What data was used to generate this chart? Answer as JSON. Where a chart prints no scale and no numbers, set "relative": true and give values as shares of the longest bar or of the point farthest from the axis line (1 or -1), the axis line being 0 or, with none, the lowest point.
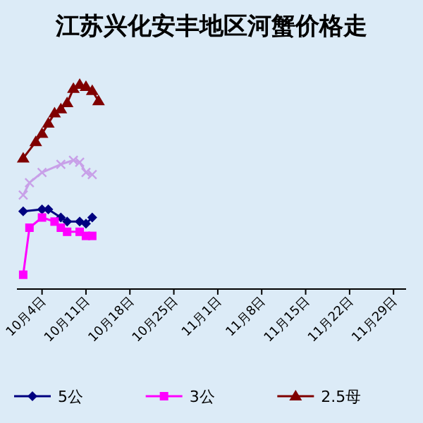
{
  "chart_data": {
    "type": "line",
    "title": "江苏兴化安丰地区河蟹价格走",
    "relative": true,
    "legend": "bottom",
    "xlim": [
      "--09-30",
      "--12-01"
    ],
    "xticks": [
      {
        "value": "--10-04",
        "label": "10月4日"
      },
      {
        "value": "--10-11",
        "label": "10月11日"
      },
      {
        "value": "--10-18",
        "label": "10月18日"
      },
      {
        "value": "--10-25",
        "label": "10月25日"
      },
      {
        "value": "--11-01",
        "label": "11月1日"
      },
      {
        "value": "--11-08",
        "label": "11月8日"
      },
      {
        "value": "--11-15",
        "label": "11月15日"
      },
      {
        "value": "--11-22",
        "label": "11月22日"
      },
      {
        "value": "--11-29",
        "label": "11月29日"
      }
    ],
    "series": [
      {
        "name": "5公",
        "color": "#000080",
        "marker": "diamond",
        "x": [
          "--10-01",
          "--10-04",
          "--10-05",
          "--10-07",
          "--10-08",
          "--10-10",
          "--10-11",
          "--10-12"
        ],
        "values": [
          0.38,
          0.39,
          0.39,
          0.35,
          0.33,
          0.33,
          0.32,
          0.35
        ]
      },
      {
        "name": "3公",
        "color": "#ff00ff",
        "marker": "square",
        "x": [
          "--10-01",
          "--10-02",
          "--10-04",
          "--10-06",
          "--10-07",
          "--10-08",
          "--10-10",
          "--10-11",
          "--10-12"
        ],
        "values": [
          0.07,
          0.3,
          0.35,
          0.33,
          0.3,
          0.28,
          0.28,
          0.26,
          0.26
        ]
      },
      {
        "name": "2.5母",
        "color": "#800000",
        "marker": "triangle",
        "x": [
          "--10-01",
          "--10-03",
          "--10-04",
          "--10-05",
          "--10-06",
          "--10-07",
          "--10-08",
          "--10-09",
          "--10-10",
          "--10-11",
          "--10-12",
          "--10-13"
        ],
        "values": [
          0.64,
          0.72,
          0.76,
          0.81,
          0.86,
          0.88,
          0.91,
          0.98,
          1.0,
          0.99,
          0.97,
          0.92
        ]
      },
      {
        "color": "#c8a0e8",
        "marker": "cross",
        "x": [
          "--10-01",
          "--10-02",
          "--10-04",
          "--10-07",
          "--10-09",
          "--10-10",
          "--10-11",
          "--10-12"
        ],
        "values": [
          0.46,
          0.52,
          0.57,
          0.61,
          0.63,
          0.62,
          0.57,
          0.56
        ]
      }
    ]
  }
}
